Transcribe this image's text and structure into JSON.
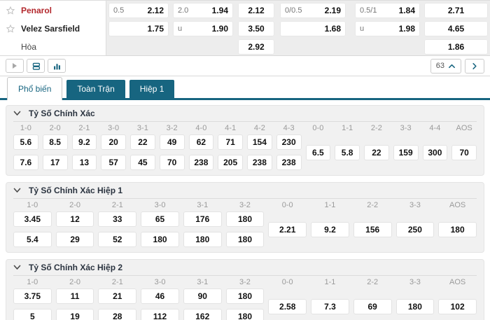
{
  "board": {
    "rows": [
      {
        "team": "Penarol",
        "style": "home",
        "star": true,
        "cells": [
          {
            "l": "0.5",
            "v": "2.12"
          },
          {
            "l": "2.0",
            "v": "1.94"
          },
          {
            "v": "2.12"
          },
          {
            "l": "0/0.5",
            "v": "2.19"
          },
          {
            "l": "0.5/1",
            "v": "1.84"
          },
          {
            "v": "2.71"
          }
        ]
      },
      {
        "team": "Velez Sarsfield",
        "style": "away",
        "star": true,
        "cells": [
          {
            "l": "",
            "v": "1.75"
          },
          {
            "l": "u",
            "v": "1.90"
          },
          {
            "v": "3.50"
          },
          {
            "l": "",
            "v": "1.68"
          },
          {
            "l": "u",
            "v": "1.98"
          },
          {
            "v": "4.65"
          }
        ]
      },
      {
        "team": "Hòa",
        "style": "draw",
        "star": false,
        "cells": [
          null,
          null,
          {
            "v": "2.92"
          },
          null,
          null,
          {
            "v": "1.86"
          }
        ]
      }
    ]
  },
  "toolbar": {
    "icons": [
      "play-icon",
      "stack-icon",
      "bar-chart-icon"
    ],
    "count": "63"
  },
  "tabs": [
    {
      "label": "Phổ biến",
      "active": true
    },
    {
      "label": "Toàn Trận",
      "active": false
    },
    {
      "label": "Hiệp 1",
      "active": false
    }
  ],
  "sections": [
    {
      "title": "Tỷ Số Chính Xác",
      "score_headers": [
        "1-0",
        "2-0",
        "2-1",
        "3-0",
        "3-1",
        "3-2",
        "4-0",
        "4-1",
        "4-2",
        "4-3"
      ],
      "row_top": [
        "5.6",
        "8.5",
        "9.2",
        "20",
        "22",
        "49",
        "62",
        "71",
        "154",
        "230"
      ],
      "row_bottom": [
        "7.6",
        "17",
        "13",
        "57",
        "45",
        "70",
        "238",
        "205",
        "238",
        "238"
      ],
      "draw_headers": [
        "0-0",
        "1-1",
        "2-2",
        "3-3",
        "4-4",
        "AOS"
      ],
      "draw_values": [
        "6.5",
        "5.8",
        "22",
        "159",
        "300",
        "70"
      ]
    },
    {
      "title": "Tỷ Số Chính Xác Hiệp 1",
      "score_headers": [
        "1-0",
        "2-0",
        "2-1",
        "3-0",
        "3-1",
        "3-2"
      ],
      "row_top": [
        "3.45",
        "12",
        "33",
        "65",
        "176",
        "180"
      ],
      "row_bottom": [
        "5.4",
        "29",
        "52",
        "180",
        "180",
        "180"
      ],
      "draw_headers": [
        "0-0",
        "1-1",
        "2-2",
        "3-3",
        "AOS"
      ],
      "draw_values": [
        "2.21",
        "9.2",
        "156",
        "250",
        "180"
      ]
    },
    {
      "title": "Tỷ Số Chính Xác Hiệp 2",
      "score_headers": [
        "1-0",
        "2-0",
        "2-1",
        "3-0",
        "3-1",
        "3-2"
      ],
      "row_top": [
        "3.75",
        "11",
        "21",
        "46",
        "90",
        "180"
      ],
      "row_bottom": [
        "5",
        "19",
        "28",
        "112",
        "162",
        "180"
      ],
      "draw_headers": [
        "0-0",
        "1-1",
        "2-2",
        "3-3",
        "AOS"
      ],
      "draw_values": [
        "2.58",
        "7.3",
        "69",
        "180",
        "102"
      ]
    }
  ]
}
